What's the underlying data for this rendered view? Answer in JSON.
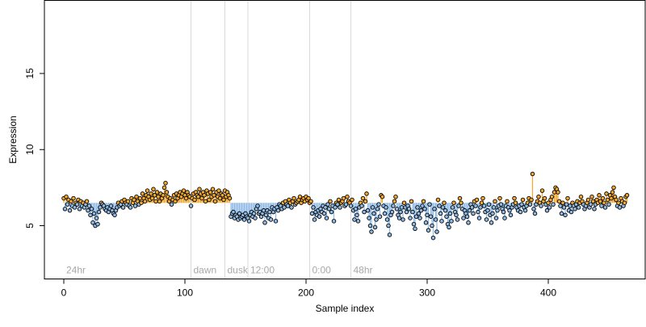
{
  "chart_data": {
    "type": "scatter",
    "title": "",
    "xlabel": "Sample index",
    "ylabel": "Expression",
    "xlim": [
      -16,
      480
    ],
    "ylim": [
      1.5,
      19.8
    ],
    "x_ticks": [
      0,
      100,
      200,
      300,
      400
    ],
    "y_ticks": [
      5,
      10,
      15
    ],
    "baseline": 6.5,
    "grid": false,
    "legend": "none",
    "colors": {
      "above": "#f0a830",
      "below": "#8fbbe6",
      "vline": "#d9d9d9",
      "vlabel": "#a8a8a8"
    },
    "time_markers": [
      {
        "x": 0,
        "label": "24hr"
      },
      {
        "x": 105,
        "label": "dawn"
      },
      {
        "x": 133,
        "label": "dusk"
      },
      {
        "x": 152,
        "label": "12:00"
      },
      {
        "x": 203,
        "label": "0:00"
      },
      {
        "x": 237,
        "label": "48hr"
      }
    ],
    "y": [
      6.8,
      6.1,
      6.9,
      6.4,
      6.7,
      6.0,
      6.6,
      6.3,
      6.8,
      6.2,
      6.5,
      6.4,
      6.7,
      6.1,
      6.6,
      6.3,
      6.5,
      6.2,
      6.4,
      6.6,
      6.0,
      6.3,
      5.7,
      6.1,
      5.2,
      5.8,
      5.0,
      5.5,
      5.1,
      5.9,
      6.2,
      6.5,
      6.4,
      6.3,
      6.1,
      6.0,
      6.2,
      5.9,
      6.1,
      6.3,
      6.0,
      5.8,
      5.7,
      6.0,
      6.2,
      6.5,
      6.3,
      6.4,
      6.6,
      6.2,
      6.7,
      6.5,
      6.4,
      6.6,
      6.3,
      6.2,
      6.8,
      6.5,
      6.7,
      6.3,
      6.9,
      6.6,
      6.4,
      6.8,
      6.5,
      7.1,
      6.8,
      6.6,
      7.0,
      7.3,
      6.9,
      6.7,
      7.1,
      6.8,
      7.4,
      7.0,
      6.6,
      7.2,
      6.9,
      6.6,
      7.1,
      6.8,
      7.0,
      7.5,
      7.8,
      7.2,
      6.9,
      6.6,
      6.8,
      6.4,
      6.7,
      7.0,
      6.6,
      7.1,
      6.8,
      7.0,
      7.2,
      6.9,
      7.1,
      7.3,
      7.0,
      6.8,
      7.2,
      7.0,
      6.9,
      6.3,
      6.8,
      7.1,
      6.7,
      7.2,
      7.0,
      6.9,
      7.4,
      7.1,
      6.8,
      7.2,
      7.0,
      6.6,
      7.3,
      7.1,
      6.7,
      7.2,
      6.9,
      7.4,
      7.0,
      6.6,
      7.2,
      6.9,
      7.3,
      6.8,
      7.1,
      7.0,
      6.7,
      7.3,
      6.9,
      7.2,
      7.0,
      6.8,
      5.6,
      5.8,
      5.9,
      5.5,
      5.7,
      5.6,
      5.4,
      5.8,
      5.5,
      5.6,
      5.7,
      5.4,
      5.8,
      5.6,
      5.5,
      5.3,
      5.7,
      5.9,
      5.6,
      5.8,
      5.5,
      6.1,
      6.3,
      5.8,
      5.9,
      5.6,
      5.8,
      6.0,
      5.2,
      5.7,
      6.0,
      5.5,
      5.9,
      5.4,
      6.2,
      5.9,
      6.1,
      5.3,
      6.2,
      6.0,
      6.4,
      6.3,
      6.1,
      6.5,
      6.2,
      6.6,
      6.4,
      6.3,
      6.7,
      6.5,
      6.2,
      6.6,
      6.8,
      6.4,
      6.5,
      6.6,
      6.7,
      6.9,
      6.5,
      6.7,
      6.8,
      6.6,
      6.9,
      6.7,
      6.8,
      6.5,
      6.6,
      5.8,
      6.2,
      5.4,
      5.9,
      5.7,
      6.0,
      5.6,
      6.1,
      5.9,
      6.3,
      5.8,
      6.2,
      5.5,
      6.4,
      6.1,
      6.6,
      5.9,
      6.3,
      5.3,
      6.2,
      6.5,
      6.4,
      6.7,
      6.2,
      6.5,
      6.6,
      6.8,
      6.3,
      6.4,
      6.9,
      6.6,
      6.5,
      6.3,
      6.7,
      6.0,
      5.4,
      6.1,
      5.7,
      5.3,
      6.2,
      6.5,
      6.3,
      6.8,
      5.9,
      6.6,
      7.1,
      6.0,
      5.5,
      5.0,
      4.6,
      6.2,
      5.8,
      4.9,
      5.4,
      6.1,
      6.4,
      5.6,
      7.0,
      6.9,
      6.3,
      5.8,
      6.2,
      5.4,
      5.0,
      4.4,
      5.7,
      5.9,
      6.3,
      6.6,
      6.9,
      6.1,
      5.7,
      5.5,
      5.9,
      6.2,
      5.4,
      6.5,
      6.2,
      5.9,
      6.3,
      6.1,
      5.5,
      6.6,
      5.9,
      5.1,
      4.8,
      5.6,
      6.2,
      5.8,
      5.5,
      6.0,
      6.3,
      6.6,
      6.1,
      5.2,
      5.7,
      4.7,
      6.4,
      5.6,
      5.0,
      4.2,
      6.1,
      5.4,
      4.6,
      6.7,
      6.3,
      5.8,
      5.3,
      6.2,
      6.5,
      6.0,
      5.6,
      5.1,
      4.9,
      5.8,
      5.3,
      6.2,
      6.5,
      5.9,
      5.7,
      5.4,
      6.3,
      6.8,
      6.5,
      6.1,
      5.5,
      6.0,
      5.8,
      5.6,
      5.2,
      6.0,
      6.4,
      6.2,
      5.8,
      6.6,
      6.3,
      6.7,
      5.9,
      5.5,
      6.2,
      6.5,
      6.8,
      6.3,
      5.9,
      5.4,
      6.0,
      6.4,
      5.7,
      5.2,
      5.8,
      6.2,
      6.6,
      5.5,
      6.0,
      6.3,
      6.8,
      6.4,
      6.1,
      5.9,
      5.5,
      6.3,
      6.6,
      6.2,
      6.0,
      5.7,
      6.2,
      6.4,
      6.8,
      6.5,
      6.2,
      6.0,
      6.3,
      5.9,
      6.4,
      6.7,
      6.2,
      6.0,
      6.3,
      6.5,
      6.8,
      6.4,
      6.7,
      8.4,
      6.1,
      5.8,
      6.4,
      6.6,
      6.9,
      6.5,
      6.3,
      7.3,
      6.6,
      6.8,
      6.4,
      6.0,
      6.5,
      6.2,
      6.7,
      6.9,
      6.4,
      7.2,
      7.5,
      7.4,
      7.2,
      6.6,
      6.3,
      5.8,
      6.5,
      6.2,
      5.7,
      6.4,
      6.8,
      6.0,
      6.3,
      5.9,
      6.5,
      6.3,
      6.1,
      6.4,
      6.6,
      6.2,
      6.5,
      6.9,
      6.6,
      6.4,
      6.1,
      6.3,
      6.5,
      6.7,
      6.2,
      6.4,
      6.9,
      6.6,
      6.1,
      6.4,
      6.7,
      6.5,
      7.0,
      6.6,
      6.3,
      6.8,
      6.5,
      6.2,
      7.1,
      6.7,
      6.4,
      7.0,
      6.8,
      7.2,
      7.5,
      6.9,
      6.7,
      6.3,
      6.5,
      6.2,
      6.8,
      6.6,
      6.3,
      6.5,
      6.9,
      7.0
    ]
  }
}
